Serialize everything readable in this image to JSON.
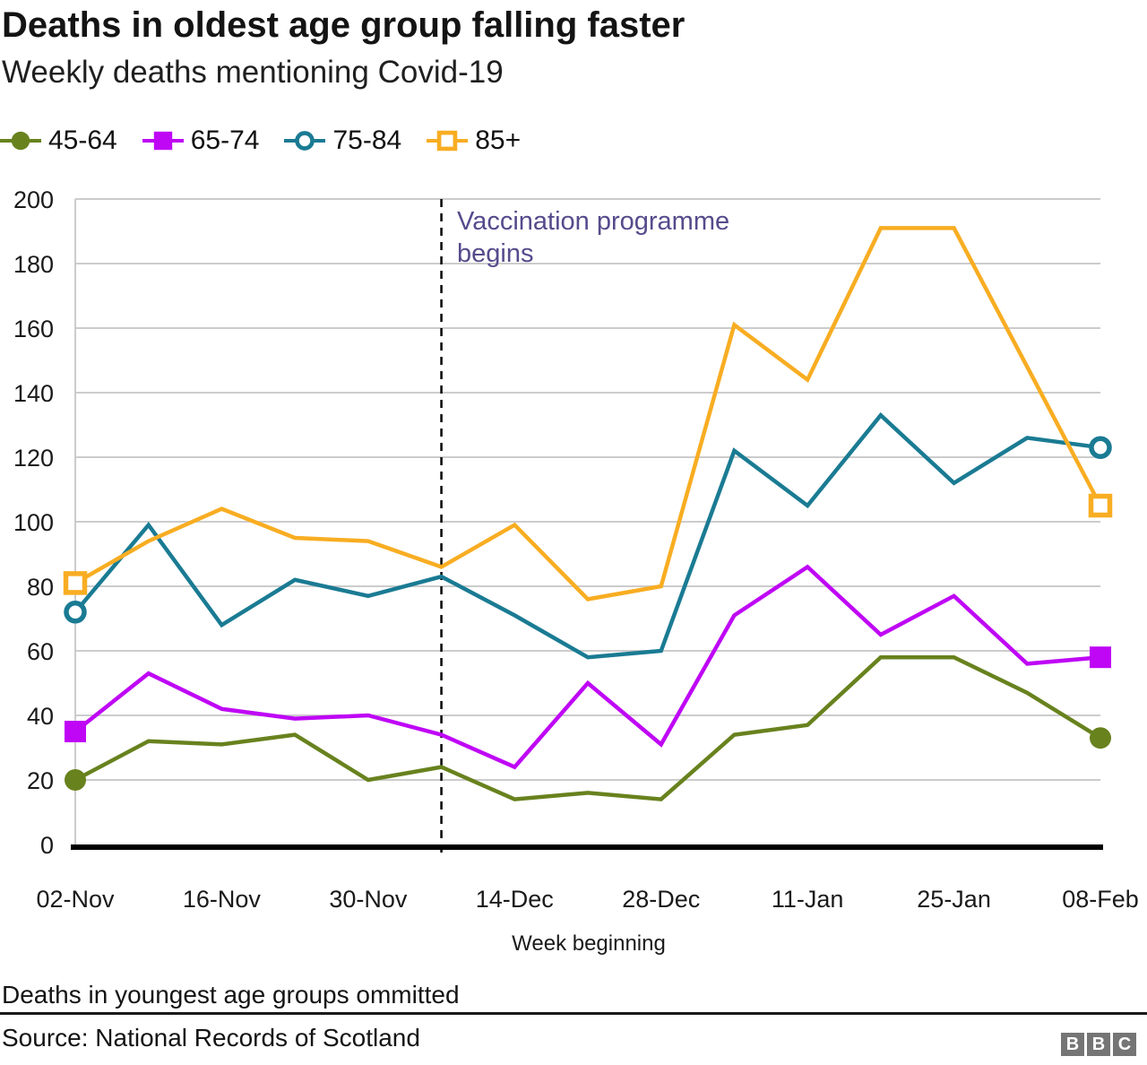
{
  "chart_data": {
    "type": "line",
    "title": "Deaths in oldest age group falling faster",
    "subtitle": "Weekly deaths mentioning Covid-19",
    "xlabel": "Week beginning",
    "ylabel": "",
    "ylim": [
      0,
      200
    ],
    "yticks": [
      0,
      20,
      40,
      60,
      80,
      100,
      120,
      140,
      160,
      180,
      200
    ],
    "grid": "horizontal",
    "legend_position": "top",
    "x_categories": [
      "02-Nov",
      "09-Nov",
      "16-Nov",
      "23-Nov",
      "30-Nov",
      "07-Dec",
      "14-Dec",
      "21-Dec",
      "28-Dec",
      "04-Jan",
      "11-Jan",
      "18-Jan",
      "25-Jan",
      "01-Feb",
      "08-Feb"
    ],
    "x_tick_labels": [
      "02-Nov",
      "16-Nov",
      "30-Nov",
      "14-Dec",
      "28-Dec",
      "11-Jan",
      "25-Jan",
      "08-Feb"
    ],
    "series": [
      {
        "name": "45-64",
        "color": "#68821E",
        "marker": "filled-circle",
        "values": [
          20,
          32,
          31,
          34,
          20,
          24,
          14,
          16,
          14,
          34,
          37,
          58,
          58,
          47,
          33
        ]
      },
      {
        "name": "65-74",
        "color": "#BF06F5",
        "marker": "filled-square",
        "values": [
          35,
          53,
          42,
          39,
          40,
          34,
          24,
          50,
          31,
          71,
          86,
          65,
          77,
          56,
          58
        ]
      },
      {
        "name": "75-84",
        "color": "#1A7B93",
        "marker": "open-circle",
        "values": [
          72,
          99,
          68,
          82,
          77,
          83,
          71,
          58,
          60,
          122,
          105,
          133,
          112,
          126,
          123
        ]
      },
      {
        "name": "85+",
        "color": "#F8AD22",
        "marker": "open-square",
        "values": [
          81,
          94,
          104,
          95,
          94,
          86,
          99,
          76,
          80,
          161,
          144,
          191,
          191,
          148,
          105
        ]
      }
    ],
    "annotation": {
      "line1": "Vaccination programme",
      "line2": "begins",
      "x_category": "07-Dec",
      "color": "#554B8C",
      "line_style": "dashed"
    }
  },
  "footer": {
    "note": "Deaths in youngest age groups ommitted",
    "source": "Source: National Records of Scotland",
    "logo_letters": [
      "B",
      "B",
      "C"
    ]
  }
}
